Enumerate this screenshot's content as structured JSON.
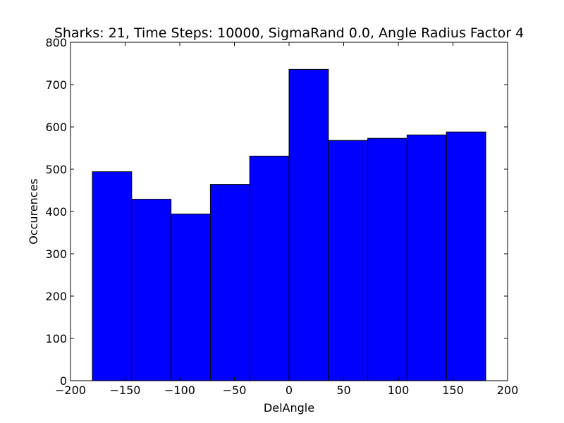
{
  "chart_data": {
    "type": "bar",
    "title": "Sharks: 21, Time Steps: 10000, SigmaRand 0.0, Angle Radius Factor 4",
    "xlabel": "DelAngle",
    "ylabel": "Occurences",
    "xlim": [
      -200,
      200
    ],
    "ylim": [
      0,
      800
    ],
    "xticks": [
      "−200",
      "−150",
      "−100",
      "−50",
      "0",
      "50",
      "100",
      "150",
      "200"
    ],
    "xtick_values": [
      -200,
      -150,
      -100,
      -50,
      0,
      50,
      100,
      150,
      200
    ],
    "yticks": [
      "0",
      "100",
      "200",
      "300",
      "400",
      "500",
      "600",
      "700",
      "800"
    ],
    "ytick_values": [
      0,
      100,
      200,
      300,
      400,
      500,
      600,
      700,
      800
    ],
    "bin_edges": [
      -180,
      -144,
      -108,
      -72,
      -36,
      0,
      36,
      72,
      108,
      144,
      180
    ],
    "values": [
      494,
      429,
      394,
      464,
      531,
      736,
      568,
      573,
      581,
      588
    ],
    "bar_color": "#0000ff",
    "edge_color": "#000000",
    "grid": false
  }
}
